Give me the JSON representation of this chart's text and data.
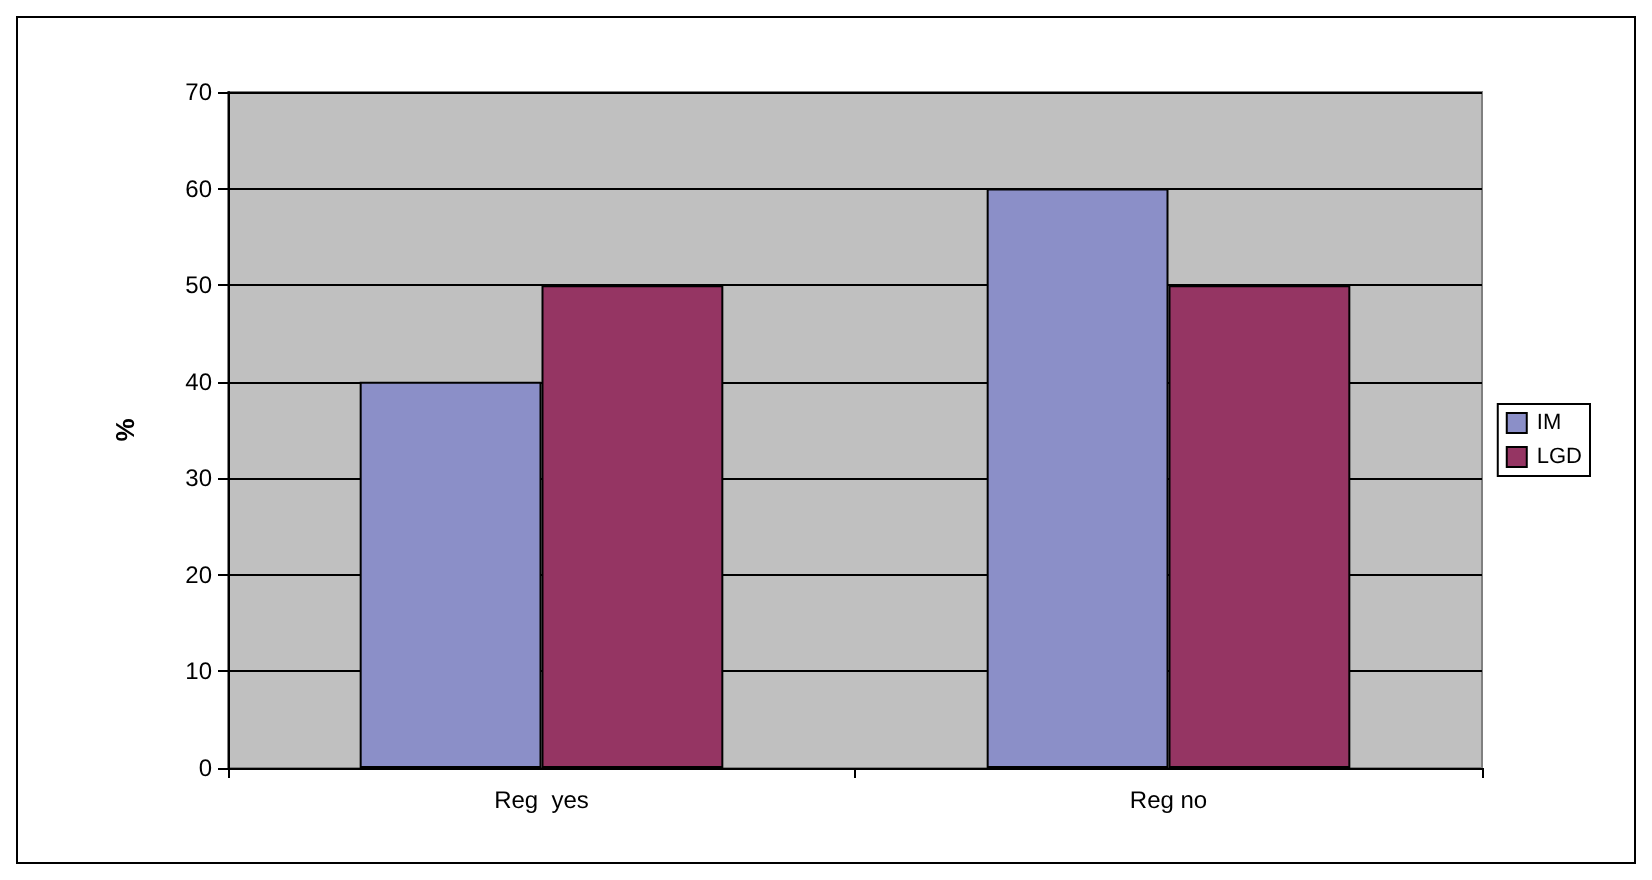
{
  "chart_data": {
    "type": "bar",
    "ylabel": "%",
    "categories": [
      "Reg  yes",
      "Reg no"
    ],
    "series": [
      {
        "name": "IM",
        "color": "#8b8fc8",
        "values": [
          40,
          60
        ]
      },
      {
        "name": "LGD",
        "color": "#953563",
        "values": [
          50,
          50
        ]
      }
    ],
    "ylim": [
      0,
      70
    ],
    "yticks": [
      0,
      10,
      20,
      30,
      40,
      50,
      60,
      70
    ],
    "grid": "y",
    "legend": "right"
  }
}
